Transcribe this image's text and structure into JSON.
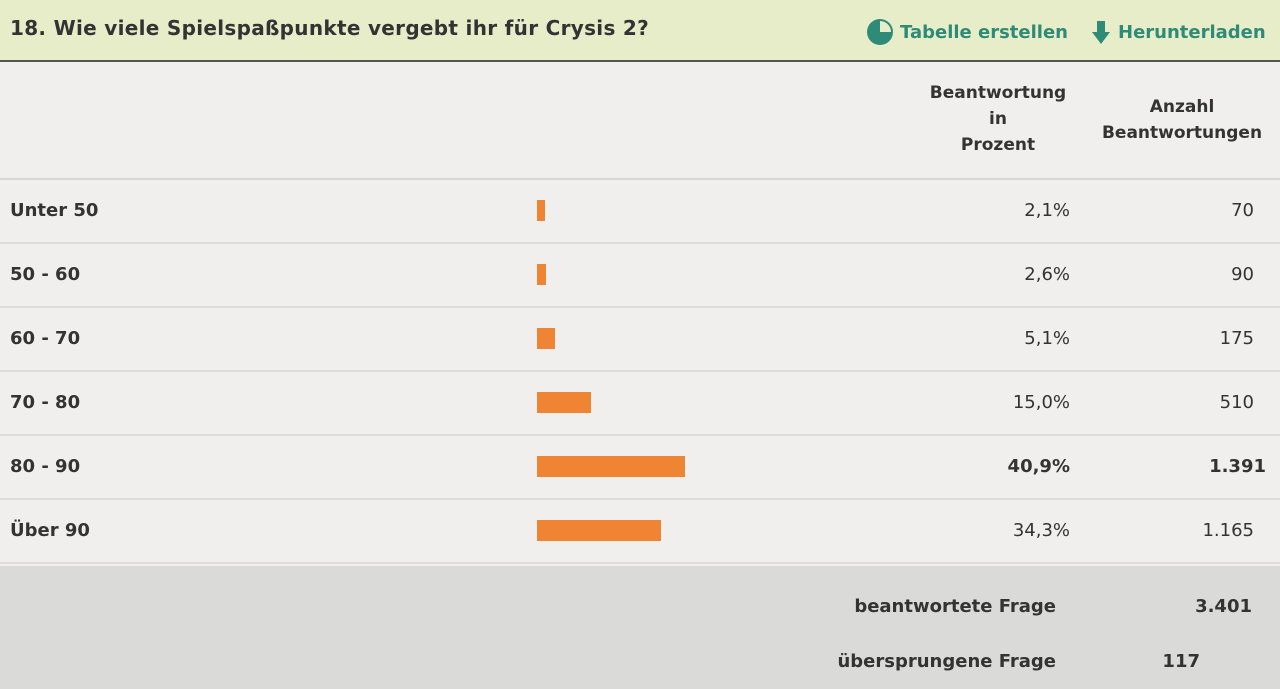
{
  "header": {
    "title": "18. Wie viele Spielspaßpunkte vergebt ihr für Crysis 2?",
    "actions": [
      "Tabelle erstellen",
      "Herunterladen"
    ]
  },
  "table": {
    "columns": [
      [
        "Beantwortung",
        "in",
        "Prozent"
      ],
      [
        "Anzahl",
        "Beantwortungen"
      ]
    ],
    "bar_color": "#ef8533",
    "rows": [
      {
        "label": "Unter 50",
        "percent": {
          "value": 2.1,
          "label": "2,1%"
        },
        "count": "70"
      },
      {
        "label": "50 - 60",
        "percent": {
          "value": 2.6,
          "label": "2,6%"
        },
        "count": "90"
      },
      {
        "label": "60 - 70",
        "percent": {
          "value": 5.1,
          "label": "5,1%"
        },
        "count": "175"
      },
      {
        "label": "70 - 80",
        "percent": {
          "value": 15.0,
          "label": "15,0%"
        },
        "count": "510"
      },
      {
        "label": "80 - 90",
        "percent": {
          "value": 40.9,
          "label": "40,9%"
        },
        "count": "1.391",
        "emphasis": true
      },
      {
        "label": "Über 90",
        "percent": {
          "value": 34.3,
          "label": "34,3%"
        },
        "count": "1.165"
      }
    ]
  },
  "summary": [
    {
      "label": "beantwortete Frage",
      "value": "3.401"
    },
    {
      "label": "übersprungene Frage",
      "value": "117"
    }
  ]
}
